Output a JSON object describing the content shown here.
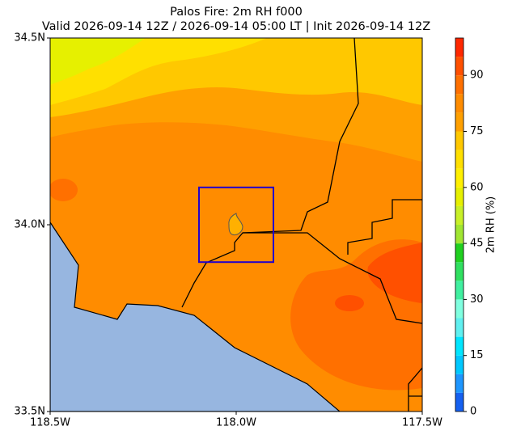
{
  "chart_data": {
    "type": "map",
    "title": "Palos Fire: 2m RH f000",
    "subtitle": "Valid 2026-09-14 12Z / 2026-09-14 05:00 LT | Init 2026-09-14 12Z",
    "xlim": [
      -118.5,
      -117.5
    ],
    "xticks": [
      {
        "value": -118.5,
        "label": "118.5W"
      },
      {
        "value": -118.0,
        "label": "118.0W"
      },
      {
        "value": -117.5,
        "label": "117.5W"
      }
    ],
    "ylim": [
      33.5,
      34.5
    ],
    "yticks": [
      {
        "value": 33.5,
        "label": "33.5N"
      },
      {
        "value": 34.0,
        "label": "34.0N"
      },
      {
        "value": 34.5,
        "label": "34.5N"
      }
    ],
    "box": {
      "lon": [
        -118.1,
        -117.9
      ],
      "lat": [
        33.9,
        34.1
      ],
      "color": "#2200cc"
    },
    "colorbar": {
      "label": "2m RH (%)",
      "lim": [
        0,
        100
      ],
      "ticks": [
        0,
        15,
        30,
        45,
        60,
        75,
        90
      ],
      "levels": [
        0,
        5,
        10,
        15,
        20,
        25,
        30,
        35,
        40,
        45,
        50,
        55,
        60,
        65,
        70,
        75,
        80,
        85,
        90,
        95,
        100
      ],
      "colors": [
        "#1560f0",
        "#1e96ff",
        "#00c8ff",
        "#00e6ff",
        "#60f0f0",
        "#80ffe0",
        "#40f0a0",
        "#30e060",
        "#20d020",
        "#a0e632",
        "#c8f028",
        "#e6f000",
        "#fff000",
        "#ffe000",
        "#ffc800",
        "#ffa000",
        "#ff8c00",
        "#ff7000",
        "#ff5000",
        "#ff2800"
      ]
    }
  }
}
